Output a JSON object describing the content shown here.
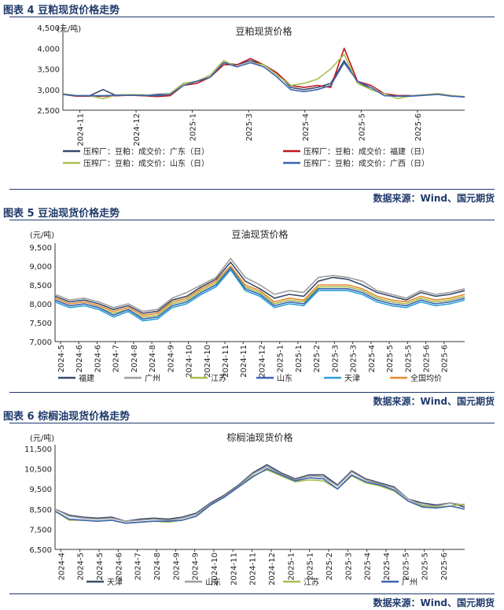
{
  "figures": [
    {
      "title": "图表 4 豆粕现货价格走势",
      "source": "数据来源：Wind、国元期货"
    },
    {
      "title": "图表 5 豆油现货价格走势",
      "source": "数据来源：Wind、国元期货"
    },
    {
      "title": "图表 6 棕榈油现货价格走势",
      "source": "数据来源：Wind、国元期货"
    }
  ],
  "chart_data": [
    {
      "type": "line",
      "title": "豆粕现货价格",
      "ylabel": "(元/吨)",
      "ylim": [
        2500,
        4500
      ],
      "yticks": [
        "2,500",
        "3,000",
        "3,500",
        "4,000",
        "4,500"
      ],
      "x_ticks": [
        "2024-11",
        "2024-12",
        "2025-1",
        "2025-3",
        "2025-4",
        "2025-5",
        "2025-6"
      ],
      "legend_position": "bottom",
      "series": [
        {
          "name": "压榨厂：豆粕：成交价：广东（日）",
          "color": "#3a4a6b",
          "values": [
            2900,
            2850,
            2850,
            3000,
            2850,
            2870,
            2850,
            2880,
            2900,
            3150,
            3200,
            3300,
            3650,
            3600,
            3700,
            3600,
            3400,
            3050,
            3000,
            3050,
            3150,
            3700,
            3200,
            3000,
            2900,
            2850,
            2850,
            2870,
            2900,
            2850,
            2820
          ]
        },
        {
          "name": "压榨厂：豆粕：成交价：福建（日）",
          "color": "#c0171f",
          "values": [
            2880,
            2840,
            2840,
            2840,
            2850,
            2860,
            2850,
            2830,
            2850,
            3100,
            3150,
            3300,
            3600,
            3600,
            3750,
            3600,
            3400,
            3100,
            3050,
            3100,
            3050,
            4000,
            3200,
            3100,
            2900,
            2850,
            2850,
            2870,
            2900,
            2850,
            2820
          ]
        },
        {
          "name": "压榨厂：豆粕：成交价：山东（日）",
          "color": "#a8bf4f",
          "values": [
            2900,
            2850,
            2850,
            2780,
            2870,
            2880,
            2870,
            2850,
            2900,
            3150,
            3200,
            3350,
            3700,
            3550,
            3650,
            3600,
            3350,
            3100,
            3150,
            3250,
            3500,
            3850,
            3150,
            3000,
            2900,
            2780,
            2850,
            2870,
            2900,
            2850,
            2830
          ]
        },
        {
          "name": "压榨厂：豆粕：成交价：广西（日）",
          "color": "#3b64b0",
          "values": [
            2880,
            2850,
            2850,
            2850,
            2860,
            2860,
            2860,
            2850,
            2880,
            3100,
            3200,
            3300,
            3650,
            3550,
            3650,
            3550,
            3300,
            3000,
            2950,
            3000,
            3100,
            3650,
            3200,
            3050,
            2850,
            2840,
            2840,
            2860,
            2880,
            2840,
            2820
          ]
        }
      ]
    },
    {
      "type": "line",
      "title": "豆油现货价格",
      "ylabel": "(元/吨)",
      "ylim": [
        7000,
        9500
      ],
      "yticks": [
        "7,000",
        "7,500",
        "8,000",
        "8,500",
        "9,000",
        "9,500"
      ],
      "x_ticks": [
        "2024-5",
        "2024-6",
        "2024-6",
        "2024-7",
        "2024-8",
        "2024-8",
        "2024-9",
        "2024-10",
        "2024-10",
        "2024-11",
        "2024-11",
        "2024-12",
        "2025-1",
        "2025-1",
        "2025-2",
        "2025-3",
        "2025-3",
        "2025-4",
        "2025-5",
        "2025-5",
        "2025-6",
        "2025-6"
      ],
      "legend_position": "bottom",
      "series": [
        {
          "name": "福建",
          "color": "#3a4a6b",
          "values": [
            8200,
            8050,
            8100,
            8000,
            7850,
            7950,
            7750,
            7800,
            8100,
            8200,
            8450,
            8650,
            9100,
            8600,
            8400,
            8150,
            8250,
            8200,
            8600,
            8700,
            8650,
            8500,
            8300,
            8200,
            8100,
            8300,
            8200,
            8250,
            8350
          ]
        },
        {
          "name": "广州",
          "color": "#9e9e9e",
          "values": [
            8250,
            8100,
            8150,
            8050,
            7900,
            8000,
            7800,
            7850,
            8150,
            8300,
            8500,
            8700,
            9200,
            8700,
            8500,
            8250,
            8350,
            8300,
            8700,
            8750,
            8700,
            8600,
            8350,
            8250,
            8150,
            8350,
            8250,
            8300,
            8400
          ]
        },
        {
          "name": "江苏",
          "color": "#a8bf4f",
          "values": [
            8100,
            7950,
            8000,
            7900,
            7750,
            7850,
            7650,
            7700,
            8000,
            8100,
            8350,
            8550,
            8950,
            8450,
            8300,
            8000,
            8100,
            8050,
            8450,
            8450,
            8450,
            8350,
            8150,
            8050,
            8000,
            8150,
            8050,
            8100,
            8200
          ]
        },
        {
          "name": "山东",
          "color": "#3b64b0",
          "values": [
            8100,
            7950,
            8000,
            7900,
            7700,
            7850,
            7600,
            7650,
            7950,
            8050,
            8300,
            8500,
            8950,
            8400,
            8250,
            7950,
            8050,
            8000,
            8400,
            8400,
            8400,
            8300,
            8100,
            8000,
            7950,
            8100,
            8000,
            8050,
            8150
          ]
        },
        {
          "name": "天津",
          "color": "#2aa0d8",
          "values": [
            8050,
            7900,
            7950,
            7850,
            7650,
            7800,
            7550,
            7600,
            7900,
            8000,
            8250,
            8450,
            8900,
            8350,
            8200,
            7900,
            8000,
            7950,
            8350,
            8350,
            8350,
            8250,
            8050,
            7950,
            7900,
            8050,
            7950,
            8000,
            8100
          ]
        },
        {
          "name": "全国均价",
          "color": "#e58a2e",
          "values": [
            8150,
            8000,
            8050,
            7950,
            7800,
            7900,
            7700,
            7750,
            8050,
            8150,
            8400,
            8600,
            9000,
            8500,
            8350,
            8050,
            8150,
            8100,
            8500,
            8500,
            8500,
            8400,
            8200,
            8100,
            8050,
            8200,
            8100,
            8150,
            8250
          ]
        }
      ]
    },
    {
      "type": "line",
      "title": "棕榈油现货价格",
      "ylabel": "(元/吨)",
      "ylim": [
        6500,
        11500
      ],
      "yticks": [
        "6,500",
        "7,500",
        "8,500",
        "9,500",
        "10,500",
        "11,500"
      ],
      "x_ticks": [
        "2024-4",
        "2024-5",
        "2024-5",
        "2024-6",
        "2024-7",
        "2024-8",
        "2024-9",
        "2024-9",
        "2024-10",
        "2024-11",
        "2024-11",
        "2024-12",
        "2025-1",
        "2025-1",
        "2025-2",
        "2025-3",
        "2025-4",
        "2025-4",
        "2025-5",
        "2025-5",
        "2025-6"
      ],
      "legend_position": "bottom",
      "series": [
        {
          "name": "天津",
          "color": "#3a4a6b",
          "values": [
            8500,
            8200,
            8100,
            8050,
            8100,
            7900,
            8000,
            8050,
            8000,
            8100,
            8300,
            8800,
            9200,
            9700,
            10300,
            10700,
            10300,
            10000,
            10200,
            10200,
            9700,
            10400,
            10000,
            9800,
            9600,
            9000,
            8800,
            8700,
            8800,
            8600
          ]
        },
        {
          "name": "山东",
          "color": "#9e9e9e",
          "values": [
            8500,
            8150,
            8050,
            8000,
            8050,
            7900,
            7950,
            8000,
            7950,
            8050,
            8250,
            8750,
            9150,
            9650,
            10250,
            10600,
            10250,
            9950,
            10150,
            10100,
            9650,
            10350,
            9950,
            9750,
            9550,
            9000,
            8700,
            8650,
            8800,
            8700
          ]
        },
        {
          "name": "江苏",
          "color": "#a8bf4f",
          "values": [
            8400,
            7950,
            7950,
            7900,
            7950,
            7800,
            7850,
            7900,
            7850,
            7950,
            8150,
            8700,
            9100,
            9600,
            10150,
            10450,
            10150,
            9850,
            9950,
            9900,
            9500,
            10150,
            9800,
            9650,
            9400,
            8900,
            8650,
            8600,
            8650,
            8750
          ]
        },
        {
          "name": "广州",
          "color": "#3b64b0",
          "values": [
            8400,
            8000,
            7950,
            7900,
            7950,
            7800,
            7850,
            7900,
            7900,
            7950,
            8150,
            8700,
            9100,
            9600,
            10100,
            10500,
            10200,
            9900,
            10050,
            10000,
            9500,
            10200,
            9850,
            9700,
            9450,
            8900,
            8600,
            8550,
            8650,
            8500
          ]
        }
      ]
    }
  ]
}
